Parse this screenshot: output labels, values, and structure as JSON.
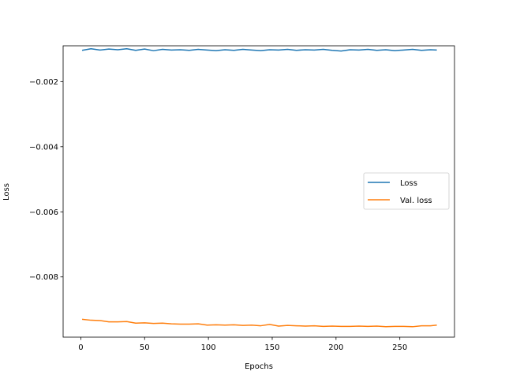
{
  "chart_data": {
    "type": "line",
    "title": "",
    "xlabel": "Epochs",
    "ylabel": "Loss",
    "xlim": [
      -13.85,
      292.85
    ],
    "ylim": [
      -0.00985,
      -0.0009
    ],
    "xticks": [
      0,
      50,
      100,
      150,
      200,
      250
    ],
    "xtick_labels": [
      "0",
      "50",
      "100",
      "150",
      "200",
      "250"
    ],
    "yticks": [
      -0.002,
      -0.004,
      -0.006,
      -0.008
    ],
    "ytick_labels": [
      "−0.002",
      "−0.004",
      "−0.006",
      "−0.008"
    ],
    "grid": false,
    "legend_position": "center-right",
    "colors": {
      "loss": "#1f77b4",
      "val_loss": "#ff7f0e"
    },
    "series": [
      {
        "name": "Loss",
        "x": [
          1,
          8,
          15,
          22,
          29,
          36,
          43,
          50,
          57,
          64,
          71,
          78,
          85,
          92,
          99,
          106,
          113,
          120,
          127,
          134,
          141,
          148,
          155,
          162,
          169,
          176,
          183,
          190,
          197,
          204,
          211,
          218,
          225,
          232,
          239,
          246,
          253,
          260,
          267,
          274,
          279
        ],
        "y": [
          -0.00104,
          -0.00099,
          -0.00103,
          -0.001,
          -0.00102,
          -0.00099,
          -0.00104,
          -0.001,
          -0.00105,
          -0.00101,
          -0.00103,
          -0.00102,
          -0.00104,
          -0.00101,
          -0.00103,
          -0.00105,
          -0.00102,
          -0.00104,
          -0.00101,
          -0.00103,
          -0.00105,
          -0.00102,
          -0.00103,
          -0.00101,
          -0.00104,
          -0.00102,
          -0.00103,
          -0.00101,
          -0.00104,
          -0.00106,
          -0.00102,
          -0.00103,
          -0.00101,
          -0.00104,
          -0.00102,
          -0.00105,
          -0.00103,
          -0.00101,
          -0.00104,
          -0.00102,
          -0.00103
        ]
      },
      {
        "name": "Val. loss",
        "x": [
          1,
          8,
          15,
          22,
          29,
          36,
          43,
          50,
          57,
          64,
          71,
          78,
          85,
          92,
          99,
          106,
          113,
          120,
          127,
          134,
          141,
          148,
          155,
          162,
          169,
          176,
          183,
          190,
          197,
          204,
          211,
          218,
          225,
          232,
          239,
          246,
          253,
          260,
          267,
          274,
          279
        ],
        "y": [
          -0.0093,
          -0.00933,
          -0.00934,
          -0.00938,
          -0.00938,
          -0.00937,
          -0.00942,
          -0.00941,
          -0.00943,
          -0.00942,
          -0.00944,
          -0.00945,
          -0.00945,
          -0.00944,
          -0.00948,
          -0.00947,
          -0.00948,
          -0.00947,
          -0.00949,
          -0.00948,
          -0.0095,
          -0.00946,
          -0.00951,
          -0.00949,
          -0.0095,
          -0.00951,
          -0.0095,
          -0.00952,
          -0.00951,
          -0.00952,
          -0.00952,
          -0.00951,
          -0.00952,
          -0.00951,
          -0.00953,
          -0.00952,
          -0.00952,
          -0.00953,
          -0.0095,
          -0.0095,
          -0.00948
        ]
      }
    ]
  }
}
